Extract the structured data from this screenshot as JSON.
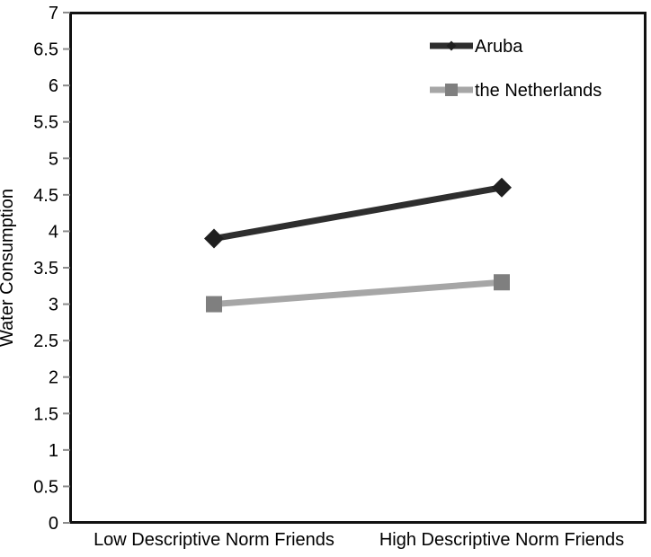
{
  "chart_data": {
    "type": "line",
    "title": "",
    "categories": [
      "Low Descriptive Norm Friends",
      "High Descriptive Norm Friends"
    ],
    "series": [
      {
        "name": "Aruba",
        "values": [
          3.9,
          4.6
        ],
        "color": "#2e2e2e",
        "marker": "diamond",
        "marker_color": "#1f1f1f"
      },
      {
        "name": "the Netherlands",
        "values": [
          3.0,
          3.3
        ],
        "color": "#a6a6a6",
        "marker": "square",
        "marker_color": "#7f7f7f"
      }
    ],
    "xlabel": "",
    "ylabel": "Water Consumption",
    "ylim": [
      0,
      7
    ],
    "ytick_step": 0.5,
    "grid": false,
    "legend_position": "top-right",
    "axis_border_color": "#111111",
    "tick_color": "#8c8c8c",
    "background_color": "#ffffff"
  }
}
